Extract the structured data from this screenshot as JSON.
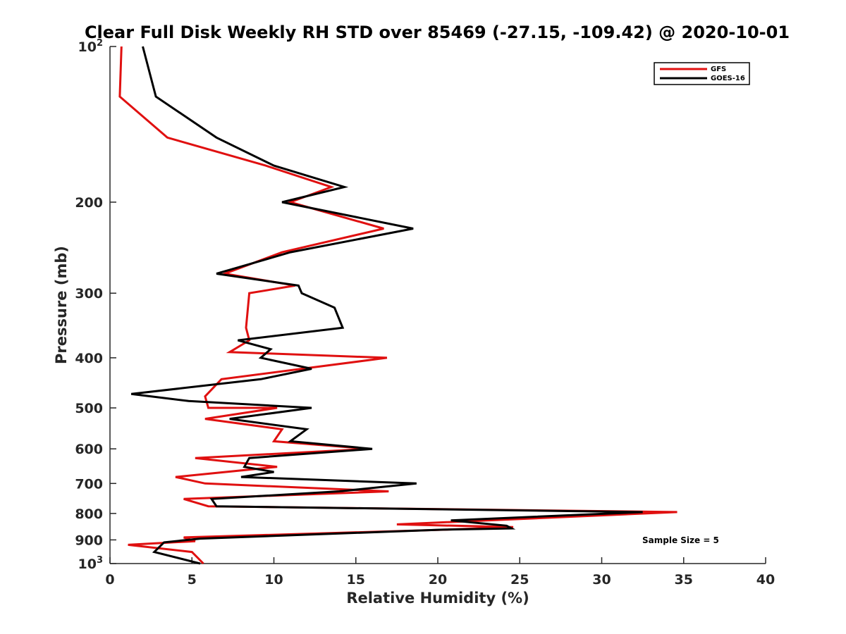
{
  "chart_data": {
    "type": "line",
    "title": "Clear Full Disk Weekly RH STD over 85469 (-27.15, -109.42) @ 2020-10-01",
    "xlabel": "Relative Humidity (%)",
    "ylabel": "Pressure (mb)",
    "xlim": [
      0,
      40
    ],
    "ylim": [
      100,
      1000
    ],
    "y_scale": "log",
    "y_reversed": true,
    "grid": false,
    "legend_position": "top-right",
    "x_ticks": [
      "0",
      "5",
      "10",
      "15",
      "20",
      "25",
      "30",
      "35",
      "40"
    ],
    "y_ticks": [
      {
        "value": 100,
        "base": "10",
        "exp": "2"
      },
      {
        "value": 200,
        "label": "200"
      },
      {
        "value": 300,
        "label": "300"
      },
      {
        "value": 400,
        "label": "400"
      },
      {
        "value": 500,
        "label": "500"
      },
      {
        "value": 600,
        "label": "600"
      },
      {
        "value": 700,
        "label": "700"
      },
      {
        "value": 800,
        "label": "800"
      },
      {
        "value": 900,
        "label": "900"
      },
      {
        "value": 1000,
        "base": "10",
        "exp": "3"
      }
    ],
    "annotation": "Sample Size = 5",
    "series": [
      {
        "name": "GFS",
        "color": "#e01010",
        "points": [
          [
            0.7,
            100
          ],
          [
            0.6,
            125
          ],
          [
            3.5,
            150
          ],
          [
            9.5,
            170
          ],
          [
            13.5,
            187
          ],
          [
            11.0,
            200
          ],
          [
            16.7,
            225
          ],
          [
            10.5,
            250
          ],
          [
            7.0,
            275
          ],
          [
            11.3,
            290
          ],
          [
            8.5,
            300
          ],
          [
            8.3,
            350
          ],
          [
            8.5,
            370
          ],
          [
            7.3,
            390
          ],
          [
            16.9,
            400
          ],
          [
            6.8,
            440
          ],
          [
            5.8,
            475
          ],
          [
            6.0,
            500
          ],
          [
            10.2,
            500
          ],
          [
            5.8,
            525
          ],
          [
            10.5,
            550
          ],
          [
            10.0,
            580
          ],
          [
            15.8,
            600
          ],
          [
            5.2,
            625
          ],
          [
            10.2,
            650
          ],
          [
            4.0,
            680
          ],
          [
            5.8,
            700
          ],
          [
            17.0,
            725
          ],
          [
            4.5,
            750
          ],
          [
            6.0,
            775
          ],
          [
            34.6,
            795
          ],
          [
            17.5,
            840
          ],
          [
            24.6,
            850
          ],
          [
            20.5,
            860
          ],
          [
            4.5,
            890
          ],
          [
            5.2,
            905
          ],
          [
            1.1,
            920
          ],
          [
            5.0,
            950
          ],
          [
            5.7,
            1000
          ]
        ]
      },
      {
        "name": "GOES-16",
        "color": "#000000",
        "points": [
          [
            2.0,
            100
          ],
          [
            2.8,
            125
          ],
          [
            6.5,
            150
          ],
          [
            10.0,
            170
          ],
          [
            14.3,
            187
          ],
          [
            10.5,
            200
          ],
          [
            18.5,
            225
          ],
          [
            11.0,
            250
          ],
          [
            6.5,
            275
          ],
          [
            11.5,
            290
          ],
          [
            11.7,
            300
          ],
          [
            13.7,
            320
          ],
          [
            14.2,
            350
          ],
          [
            7.8,
            370
          ],
          [
            9.8,
            385
          ],
          [
            9.2,
            400
          ],
          [
            12.3,
            420
          ],
          [
            9.2,
            440
          ],
          [
            1.3,
            470
          ],
          [
            4.8,
            485
          ],
          [
            12.3,
            500
          ],
          [
            7.3,
            525
          ],
          [
            12.0,
            550
          ],
          [
            11.0,
            580
          ],
          [
            16.0,
            600
          ],
          [
            8.5,
            625
          ],
          [
            8.2,
            650
          ],
          [
            10.0,
            665
          ],
          [
            8.0,
            680
          ],
          [
            18.7,
            700
          ],
          [
            14.0,
            725
          ],
          [
            6.2,
            750
          ],
          [
            6.5,
            775
          ],
          [
            32.5,
            795
          ],
          [
            20.8,
            825
          ],
          [
            24.2,
            845
          ],
          [
            24.5,
            855
          ],
          [
            20.3,
            860
          ],
          [
            5.5,
            895
          ],
          [
            3.3,
            910
          ],
          [
            2.7,
            950
          ],
          [
            5.5,
            1000
          ]
        ]
      }
    ]
  }
}
